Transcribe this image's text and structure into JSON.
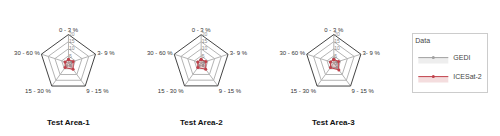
{
  "chart_data": [
    {
      "type": "radar",
      "title": "Test Area-1",
      "categories": [
        "0 - 3 %",
        "3- 9 %",
        "9 - 15 %",
        "15 - 30 %",
        "30 - 60 %"
      ],
      "series": [
        {
          "name": "GEDI",
          "color": "#a0a0a0",
          "values": [
            2.5,
            2.5,
            2.5,
            2.5,
            2.5
          ]
        },
        {
          "name": "ICESat-2",
          "color": "#c0404a",
          "values": [
            2.5,
            3.5,
            5.5,
            4.0,
            2.5
          ]
        }
      ],
      "ylim": [
        0,
        20
      ],
      "yticks": [
        0,
        5,
        10,
        15,
        20
      ],
      "grid": true
    },
    {
      "type": "radar",
      "title": "Test Area-2",
      "categories": [
        "0 - 3 %",
        "3- 9 %",
        "9 - 15 %",
        "15 - 30 %",
        "30 - 60 %"
      ],
      "series": [
        {
          "name": "GEDI",
          "color": "#a0a0a0",
          "values": [
            2.5,
            2.5,
            2.5,
            2.5,
            2.5
          ]
        },
        {
          "name": "ICESat-2",
          "color": "#c0404a",
          "values": [
            2.5,
            3.5,
            5.5,
            4.0,
            2.5
          ]
        }
      ],
      "ylim": [
        0,
        20
      ],
      "yticks": [
        0,
        5,
        10,
        15,
        20
      ],
      "grid": true
    },
    {
      "type": "radar",
      "title": "Test Area-3",
      "categories": [
        "0 - 3 %",
        "3- 9 %",
        "9 - 15 %",
        "15 - 30 %",
        "30 - 60 %"
      ],
      "series": [
        {
          "name": "GEDI",
          "color": "#a0a0a0",
          "values": [
            3.0,
            2.5,
            4.0,
            3.5,
            2.5
          ]
        },
        {
          "name": "ICESat-2",
          "color": "#c0404a",
          "values": [
            2.5,
            3.5,
            6.0,
            4.0,
            2.5
          ]
        }
      ],
      "ylim": [
        0,
        20
      ],
      "yticks": [
        0,
        5,
        10,
        15,
        20
      ],
      "grid": true,
      "legend": "right",
      "legend_title": "Data"
    }
  ]
}
